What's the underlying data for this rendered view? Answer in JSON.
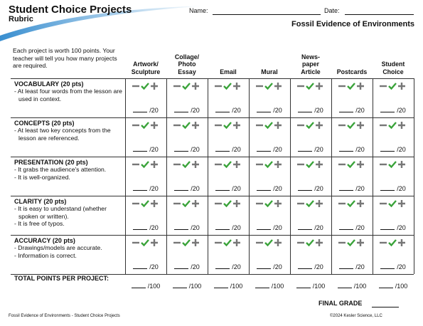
{
  "header": {
    "title": "Student Choice Projects",
    "subtitle": "Rubric",
    "name_label": "Name:",
    "date_label": "Date:",
    "topic": "Fossil Evidence of Environments"
  },
  "intro": "Each project is worth 100 points. Your teacher will tell you how many projects are required.",
  "columns": [
    "Artwork/\nSculpture",
    "Collage/\nPhoto\nEssay",
    "Email",
    "Mural",
    "News-\npaper\nArticle",
    "Postcards",
    "Student\nChoice"
  ],
  "criteria": [
    {
      "title": "VOCABULARY (20 pts)",
      "bullets": [
        "- At least four words from the lesson are used in context."
      ],
      "max": "/20"
    },
    {
      "title": "CONCEPTS (20 pts)",
      "bullets": [
        "- At least two key concepts from the lesson are referenced."
      ],
      "max": "/20"
    },
    {
      "title": "PRESENTATION (20 pts)",
      "bullets": [
        "- It grabs the audience's attention.",
        "- It is well-organized."
      ],
      "max": "/20"
    },
    {
      "title": "CLARITY (20 pts)",
      "bullets": [
        "- It is easy to understand (whether spoken or written).",
        "- It is free of typos."
      ],
      "max": "/20"
    },
    {
      "title": "ACCURACY (20 pts)",
      "bullets": [
        "- Drawings/models are accurate.",
        "- Information is correct."
      ],
      "max": "/20"
    }
  ],
  "total": {
    "label": "TOTAL POINTS PER PROJECT:",
    "max": "/100"
  },
  "final_grade": "FINAL GRADE",
  "footer": {
    "left": "Fossil Evidence of Environments - Student Choice Projects",
    "right": "©2024 Kesler Science, LLC"
  }
}
